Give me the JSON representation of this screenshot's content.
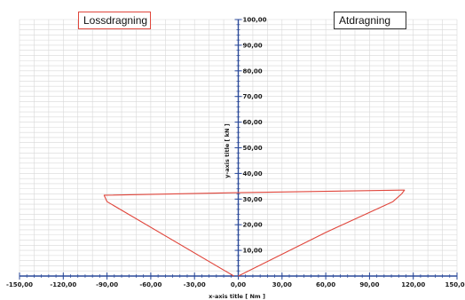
{
  "chart_data": {
    "type": "line",
    "xlabel": "x-axis title [ Nm ]",
    "ylabel": "y-axis title [ kN ]",
    "xlim": [
      -150,
      150
    ],
    "ylim": [
      0,
      100
    ],
    "x_ticks": [
      -150,
      -120,
      -90,
      -60,
      -30,
      0,
      30,
      60,
      90,
      120,
      150
    ],
    "x_tick_labels": [
      "-150,00",
      "-120,00",
      "-90,00",
      "-60,00",
      "-30,00",
      "0,00",
      "30,00",
      "60,00",
      "90,00",
      "120,00",
      "150,00"
    ],
    "y_ticks": [
      10,
      20,
      30,
      40,
      50,
      60,
      70,
      80,
      90,
      100
    ],
    "y_tick_labels": [
      "10,00",
      "20,00",
      "30,00",
      "40,00",
      "50,00",
      "60,00",
      "70,00",
      "80,00",
      "90,00",
      "100,00"
    ],
    "grid": true,
    "series": [
      {
        "name": "Lossdragning",
        "color": "#e0463c",
        "x": [
          -3,
          -90,
          -92,
          0
        ],
        "y": [
          0,
          29,
          31.5,
          32.5
        ]
      },
      {
        "name": "Atdragning",
        "color": "#e0463c",
        "x": [
          0,
          112,
          114,
          112,
          106,
          60,
          0
        ],
        "y": [
          32.5,
          33.5,
          33.5,
          32,
          29,
          17,
          0
        ]
      }
    ]
  },
  "legend": {
    "left_label": "Lossdragning",
    "right_label": "Atdragning",
    "left_border_color": "#e0463c",
    "right_border_color": "#333333"
  },
  "colors": {
    "axis": "#2b4a9a",
    "grid": "#d8d8d8",
    "line": "#e0463c"
  }
}
